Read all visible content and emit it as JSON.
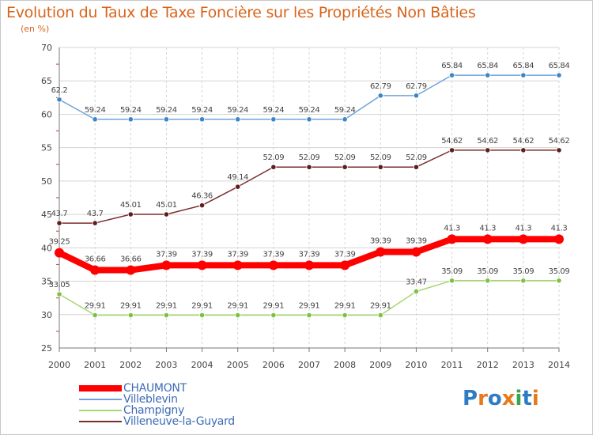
{
  "title": "Evolution du Taux de Taxe Foncière sur les Propriétés Non Bâties",
  "unit_label": "(en %)",
  "logo": {
    "text": "Proxiti",
    "colors": [
      "#2d7cc4",
      "#e8791d",
      "#2d7cc4",
      "#e8791d",
      "#3aa54a",
      "#2d7cc4",
      "#e8791d"
    ]
  },
  "chart_data": {
    "type": "line",
    "x": [
      "2000",
      "2001",
      "2002",
      "2003",
      "2004",
      "2005",
      "2006",
      "2007",
      "2008",
      "2009",
      "2010",
      "2011",
      "2012",
      "2013",
      "2014"
    ],
    "ylim": [
      25,
      70
    ],
    "yticks": [
      25,
      30,
      35,
      40,
      45,
      50,
      55,
      60,
      65,
      70
    ],
    "grid": true,
    "legend": "bottom-left",
    "series": [
      {
        "name": "Villeblevin",
        "color": "#6fa3d8",
        "marker": "#3d86c6",
        "values": [
          62.2,
          59.24,
          59.24,
          59.24,
          59.24,
          59.24,
          59.24,
          59.24,
          59.24,
          62.79,
          62.79,
          65.84,
          65.84,
          65.84,
          65.84
        ],
        "labels": [
          "62.2",
          "59.24",
          "59.24",
          "59.24",
          "59.24",
          "59.24",
          "59.24",
          "59.24",
          "59.24",
          "62.79",
          "62.79",
          "65.84",
          "65.84",
          "65.84",
          "65.84"
        ]
      },
      {
        "name": "Villeneuve-la-Guyard",
        "color": "#7a2d2d",
        "marker": "#5e1e1e",
        "values": [
          43.7,
          43.7,
          45.01,
          45.01,
          46.36,
          49.14,
          52.09,
          52.09,
          52.09,
          52.09,
          52.09,
          54.62,
          54.62,
          54.62,
          54.62
        ],
        "labels": [
          "43.7",
          "43.7",
          "45.01",
          "45.01",
          "46.36",
          "49.14",
          "52.09",
          "52.09",
          "52.09",
          "52.09",
          "52.09",
          "54.62",
          "54.62",
          "54.62",
          "54.62"
        ]
      },
      {
        "name": "CHAUMONT",
        "color": "#ff0000",
        "marker": "#ff0000",
        "values": [
          39.25,
          36.66,
          36.66,
          37.39,
          37.39,
          37.39,
          37.39,
          37.39,
          37.39,
          39.39,
          39.39,
          41.3,
          41.3,
          41.3,
          41.3
        ],
        "labels": [
          "39.25",
          "36.66",
          "36.66",
          "37.39",
          "37.39",
          "37.39",
          "37.39",
          "37.39",
          "37.39",
          "39.39",
          "39.39",
          "41.3",
          "41.3",
          "41.3",
          "41.3"
        ]
      },
      {
        "name": "Champigny",
        "color": "#a6d86e",
        "marker": "#7cc242",
        "values": [
          33.05,
          29.91,
          29.91,
          29.91,
          29.91,
          29.91,
          29.91,
          29.91,
          29.91,
          29.91,
          33.47,
          35.09,
          35.09,
          35.09,
          35.09
        ],
        "labels": [
          "33.05",
          "29.91",
          "29.91",
          "29.91",
          "29.91",
          "29.91",
          "29.91",
          "29.91",
          "29.91",
          "29.91",
          "33.47",
          "35.09",
          "35.09",
          "35.09",
          "35.09"
        ]
      }
    ],
    "legend_order": [
      "CHAUMONT",
      "Villeblevin",
      "Champigny",
      "Villeneuve-la-Guyard"
    ]
  }
}
